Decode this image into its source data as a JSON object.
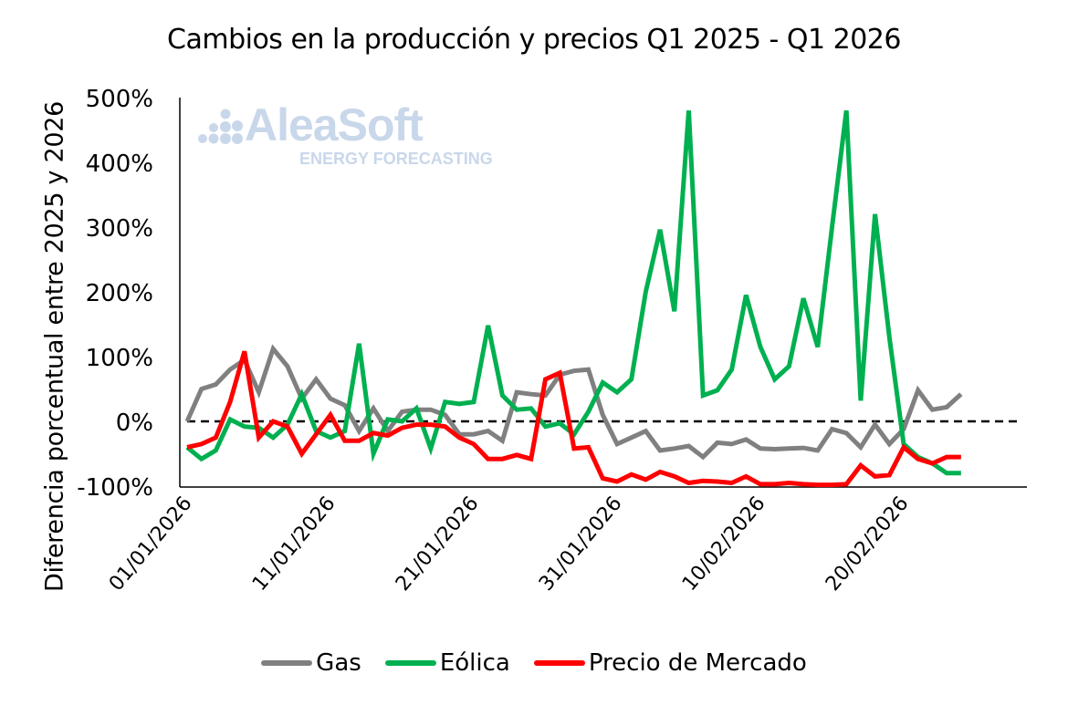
{
  "chart_data": {
    "type": "line",
    "title": "Cambios en la producción y precios Q1 2025 - Q1 2026",
    "xlabel": "",
    "ylabel": "Diferencia porcentual entre 2025 y 2026",
    "ylim": [
      -100,
      500
    ],
    "yticks": [
      "500%",
      "400%",
      "300%",
      "200%",
      "100%",
      "0%",
      "-100%"
    ],
    "ytick_values": [
      500,
      400,
      300,
      200,
      100,
      0,
      -100
    ],
    "xtick_labels": [
      "01/01/2026",
      "11/01/2026",
      "21/01/2026",
      "31/01/2026",
      "10/02/2026",
      "20/02/2026"
    ],
    "xtick_index": [
      0,
      10,
      20,
      30,
      40,
      50
    ],
    "x_start": "01/01/2026",
    "n_points": 58,
    "zero_line": "dashed",
    "legend_position": "bottom",
    "series": [
      {
        "name": "Gas",
        "color": "#808080",
        "values": [
          0,
          50,
          57,
          80,
          95,
          45,
          112,
          85,
          35,
          65,
          35,
          25,
          -15,
          20,
          -15,
          15,
          18,
          18,
          10,
          -20,
          -20,
          -15,
          -30,
          45,
          42,
          40,
          72,
          78,
          80,
          10,
          -35,
          -25,
          -15,
          -45,
          -42,
          -38,
          -55,
          -33,
          -35,
          -28,
          -42,
          -43,
          -42,
          -41,
          -45,
          -12,
          -18,
          -40,
          -5,
          -35,
          -12,
          48,
          18,
          22,
          42,
          42,
          42,
          42
        ]
      },
      {
        "name": "Eólica",
        "color": "#00b050",
        "values": [
          -40,
          -58,
          -45,
          3,
          -8,
          -10,
          -25,
          -5,
          42,
          -15,
          -25,
          -15,
          120,
          -50,
          3,
          0,
          20,
          -42,
          30,
          27,
          30,
          148,
          40,
          18,
          20,
          -8,
          -3,
          -20,
          15,
          60,
          45,
          65,
          200,
          296,
          170,
          480,
          40,
          48,
          80,
          195,
          115,
          65,
          85,
          190,
          115,
          300,
          480,
          32,
          320,
          130,
          -35,
          -55,
          -65,
          -80,
          -80,
          -80,
          -80,
          -80
        ]
      },
      {
        "name": "Precio de Mercado",
        "color": "#ff0000",
        "values": [
          -40,
          -35,
          -25,
          30,
          108,
          -25,
          0,
          -8,
          -50,
          -20,
          10,
          -30,
          -30,
          -18,
          -22,
          -10,
          -5,
          -5,
          -8,
          -25,
          -35,
          -58,
          -58,
          -52,
          -58,
          65,
          75,
          -42,
          -40,
          -88,
          -93,
          -82,
          -90,
          -78,
          -85,
          -95,
          -92,
          -93,
          -95,
          -85,
          -97,
          -97,
          -95,
          -97,
          -98,
          -98,
          -97,
          -68,
          -85,
          -83,
          -40,
          -58,
          -65,
          -55,
          -55,
          -55,
          -55,
          -55
        ]
      }
    ]
  },
  "title": "Cambios en la producción y precios Q1 2025 - Q1 2026",
  "ylabel": "Diferencia porcentual entre 2025 y 2026",
  "logo": {
    "main": "AleaSoft",
    "sub": "ENERGY FORECASTING"
  },
  "legend": [
    {
      "label": "Gas",
      "color": "#808080"
    },
    {
      "label": "Eólica",
      "color": "#00b050"
    },
    {
      "label": "Precio de Mercado",
      "color": "#ff0000"
    }
  ]
}
